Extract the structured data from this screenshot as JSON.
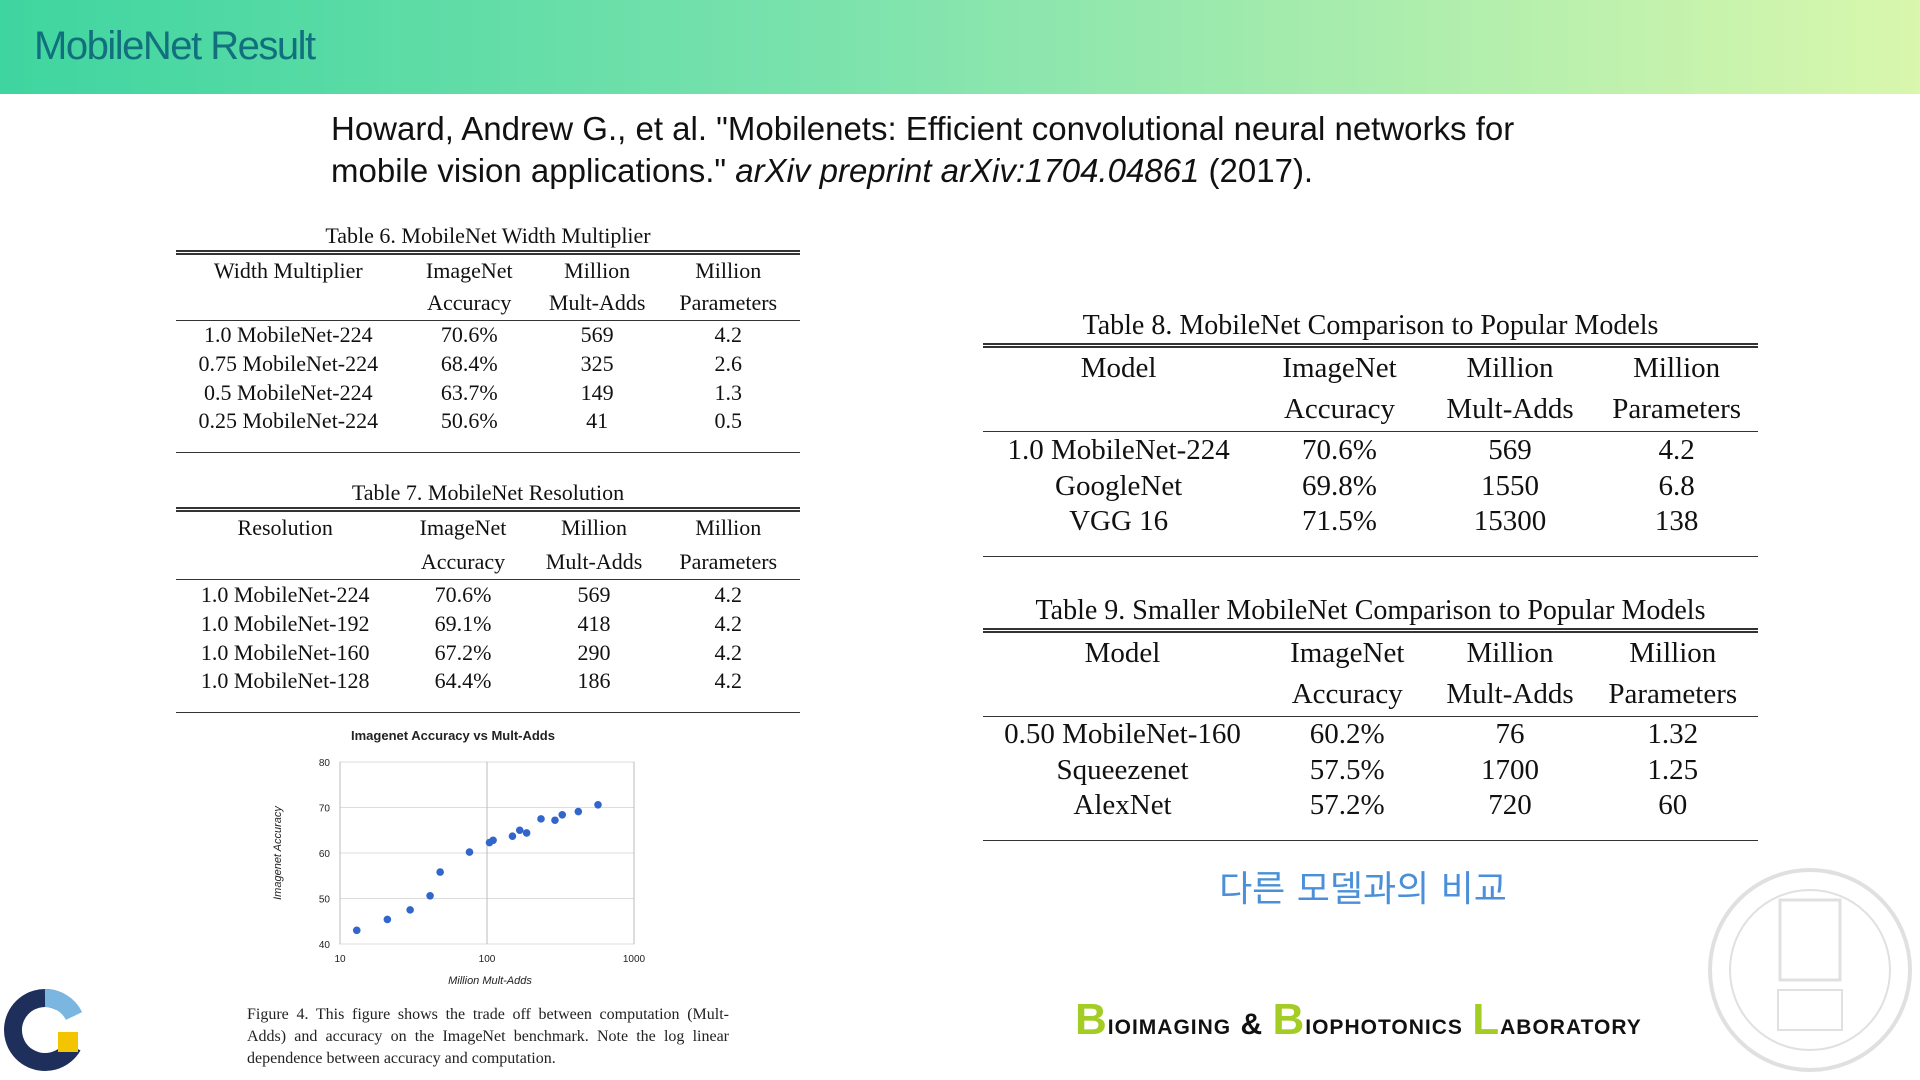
{
  "header": {
    "title": "MobileNet Result"
  },
  "citation": [
    "Howard, Andrew G., et al. \"Mobilenets: Efficient convolutional neural networks for mobile vision applications.\" ",
    "arXiv preprint arXiv:1704.04861",
    " (2017)."
  ],
  "tables": [
    {
      "caption": "Table 6. MobileNet Width Multiplier",
      "header": [
        [
          "Width Multiplier"
        ],
        [
          "ImageNet",
          "Accuracy"
        ],
        [
          "Million",
          "Mult-Adds"
        ],
        [
          "Million",
          "Parameters"
        ]
      ],
      "rows": [
        [
          "1.0 MobileNet-224",
          "70.6%",
          "569",
          "4.2"
        ],
        [
          "0.75 MobileNet-224",
          "68.4%",
          "325",
          "2.6"
        ],
        [
          "0.5 MobileNet-224",
          "63.7%",
          "149",
          "1.3"
        ],
        [
          "0.25 MobileNet-224",
          "50.6%",
          "41",
          "0.5"
        ]
      ]
    },
    {
      "caption": "Table 7. MobileNet Resolution",
      "header": [
        [
          "Resolution"
        ],
        [
          "ImageNet",
          "Accuracy"
        ],
        [
          "Million",
          "Mult-Adds"
        ],
        [
          "Million",
          "Parameters"
        ]
      ],
      "rows": [
        [
          "1.0 MobileNet-224",
          "70.6%",
          "569",
          "4.2"
        ],
        [
          "1.0 MobileNet-192",
          "69.1%",
          "418",
          "4.2"
        ],
        [
          "1.0 MobileNet-160",
          "67.2%",
          "290",
          "4.2"
        ],
        [
          "1.0 MobileNet-128",
          "64.4%",
          "186",
          "4.2"
        ]
      ]
    },
    {
      "caption": "Table 8. MobileNet Comparison to Popular Models",
      "header": [
        [
          "Model"
        ],
        [
          "ImageNet",
          "Accuracy"
        ],
        [
          "Million",
          "Mult-Adds"
        ],
        [
          "Million",
          "Parameters"
        ]
      ],
      "rows": [
        [
          "1.0 MobileNet-224",
          "70.6%",
          "569",
          "4.2"
        ],
        [
          "GoogleNet",
          "69.8%",
          "1550",
          "6.8"
        ],
        [
          "VGG 16",
          "71.5%",
          "15300",
          "138"
        ]
      ]
    },
    {
      "caption": "Table 9. Smaller MobileNet Comparison to Popular Models",
      "header": [
        [
          "Model"
        ],
        [
          "ImageNet",
          "Accuracy"
        ],
        [
          "Million",
          "Mult-Adds"
        ],
        [
          "Million",
          "Parameters"
        ]
      ],
      "rows": [
        [
          "0.50 MobileNet-160",
          "60.2%",
          "76",
          "1.32"
        ],
        [
          "Squeezenet",
          "57.5%",
          "1700",
          "1.25"
        ],
        [
          "AlexNet",
          "57.2%",
          "720",
          "60"
        ]
      ]
    }
  ],
  "chart_data": {
    "type": "scatter",
    "title": "Imagenet Accuracy vs Mult-Adds",
    "x_label": "Million Mult-Adds",
    "y_label": "Imagenet Accuracy",
    "x": [
      13,
      21,
      30,
      41,
      48,
      76,
      104,
      110,
      149,
      167,
      186,
      233,
      290,
      325,
      418,
      569
    ],
    "values": [
      43,
      45.4,
      47.5,
      50.6,
      55.8,
      60.2,
      62.3,
      62.8,
      63.7,
      65,
      64.4,
      67.5,
      67.2,
      68.4,
      69.1,
      70.6
    ],
    "color": "#3366cc",
    "xscale": "log",
    "xlim": [
      10,
      1000
    ],
    "xticks": [
      10,
      100,
      1000
    ],
    "ylim": [
      40,
      80
    ],
    "yticks": [
      40,
      50,
      60,
      70,
      80
    ],
    "grid": true
  },
  "figure_caption": "Figure 4. This figure shows the trade off between computation (Mult-Adds) and accuracy on the ImageNet benchmark. Note the log linear dependence between accuracy and computation.",
  "note": "다른 모델과의 비교",
  "lab_name": "Bioimaging & Biophotonics Laboratory"
}
